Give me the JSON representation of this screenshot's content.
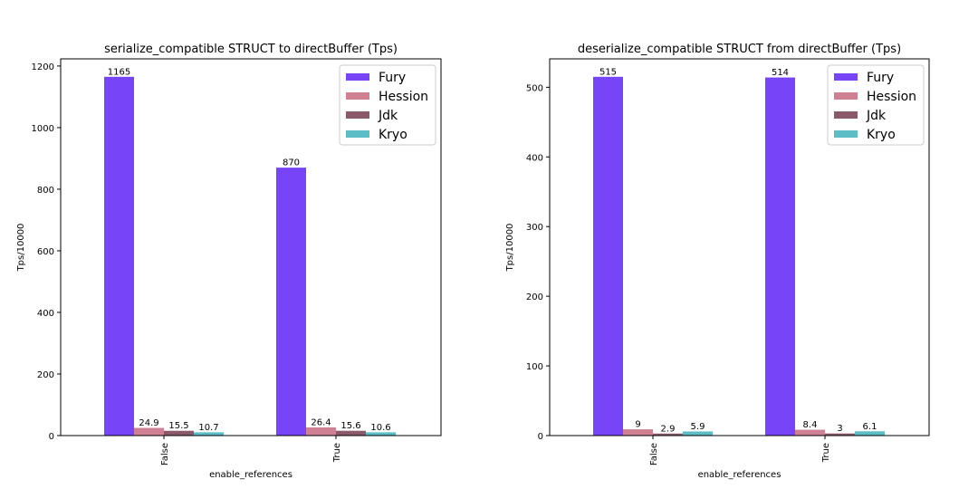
{
  "chart_data": [
    {
      "type": "bar",
      "title": "serialize_compatible STRUCT to directBuffer (Tps)",
      "xlabel": "enable_references",
      "ylabel": "Tps/10000",
      "categories": [
        "False",
        "True"
      ],
      "ylim": [
        0,
        1223.25
      ],
      "yticks": [
        0,
        200,
        400,
        600,
        800,
        1000,
        1200
      ],
      "legend_position": "top-right",
      "grid": false,
      "series": [
        {
          "name": "Fury",
          "color": "#7744f7",
          "values": [
            1165,
            870
          ],
          "labels": [
            "1165",
            "870"
          ]
        },
        {
          "name": "Hession",
          "color": "#d08093",
          "values": [
            24.9,
            26.4
          ],
          "labels": [
            "24.9",
            "26.4"
          ]
        },
        {
          "name": "Jdk",
          "color": "#8a5a6a",
          "values": [
            15.5,
            15.6
          ],
          "labels": [
            "15.5",
            "15.6"
          ]
        },
        {
          "name": "Kryo",
          "color": "#5bbdc6",
          "values": [
            10.7,
            10.6
          ],
          "labels": [
            "10.7",
            "10.6"
          ]
        }
      ]
    },
    {
      "type": "bar",
      "title": "deserialize_compatible STRUCT from directBuffer (Tps)",
      "xlabel": "enable_references",
      "ylabel": "Tps/10000",
      "categories": [
        "False",
        "True"
      ],
      "ylim": [
        0,
        540.75
      ],
      "yticks": [
        0,
        100,
        200,
        300,
        400,
        500
      ],
      "legend_position": "top-right",
      "grid": false,
      "series": [
        {
          "name": "Fury",
          "color": "#7744f7",
          "values": [
            515,
            514
          ],
          "labels": [
            "515",
            "514"
          ]
        },
        {
          "name": "Hession",
          "color": "#d08093",
          "values": [
            9,
            8.4
          ],
          "labels": [
            "9",
            "8.4"
          ]
        },
        {
          "name": "Jdk",
          "color": "#8a5a6a",
          "values": [
            2.9,
            3
          ],
          "labels": [
            "2.9",
            "3"
          ]
        },
        {
          "name": "Kryo",
          "color": "#5bbdc6",
          "values": [
            5.9,
            6.1
          ],
          "labels": [
            "5.9",
            "6.1"
          ]
        }
      ]
    }
  ]
}
